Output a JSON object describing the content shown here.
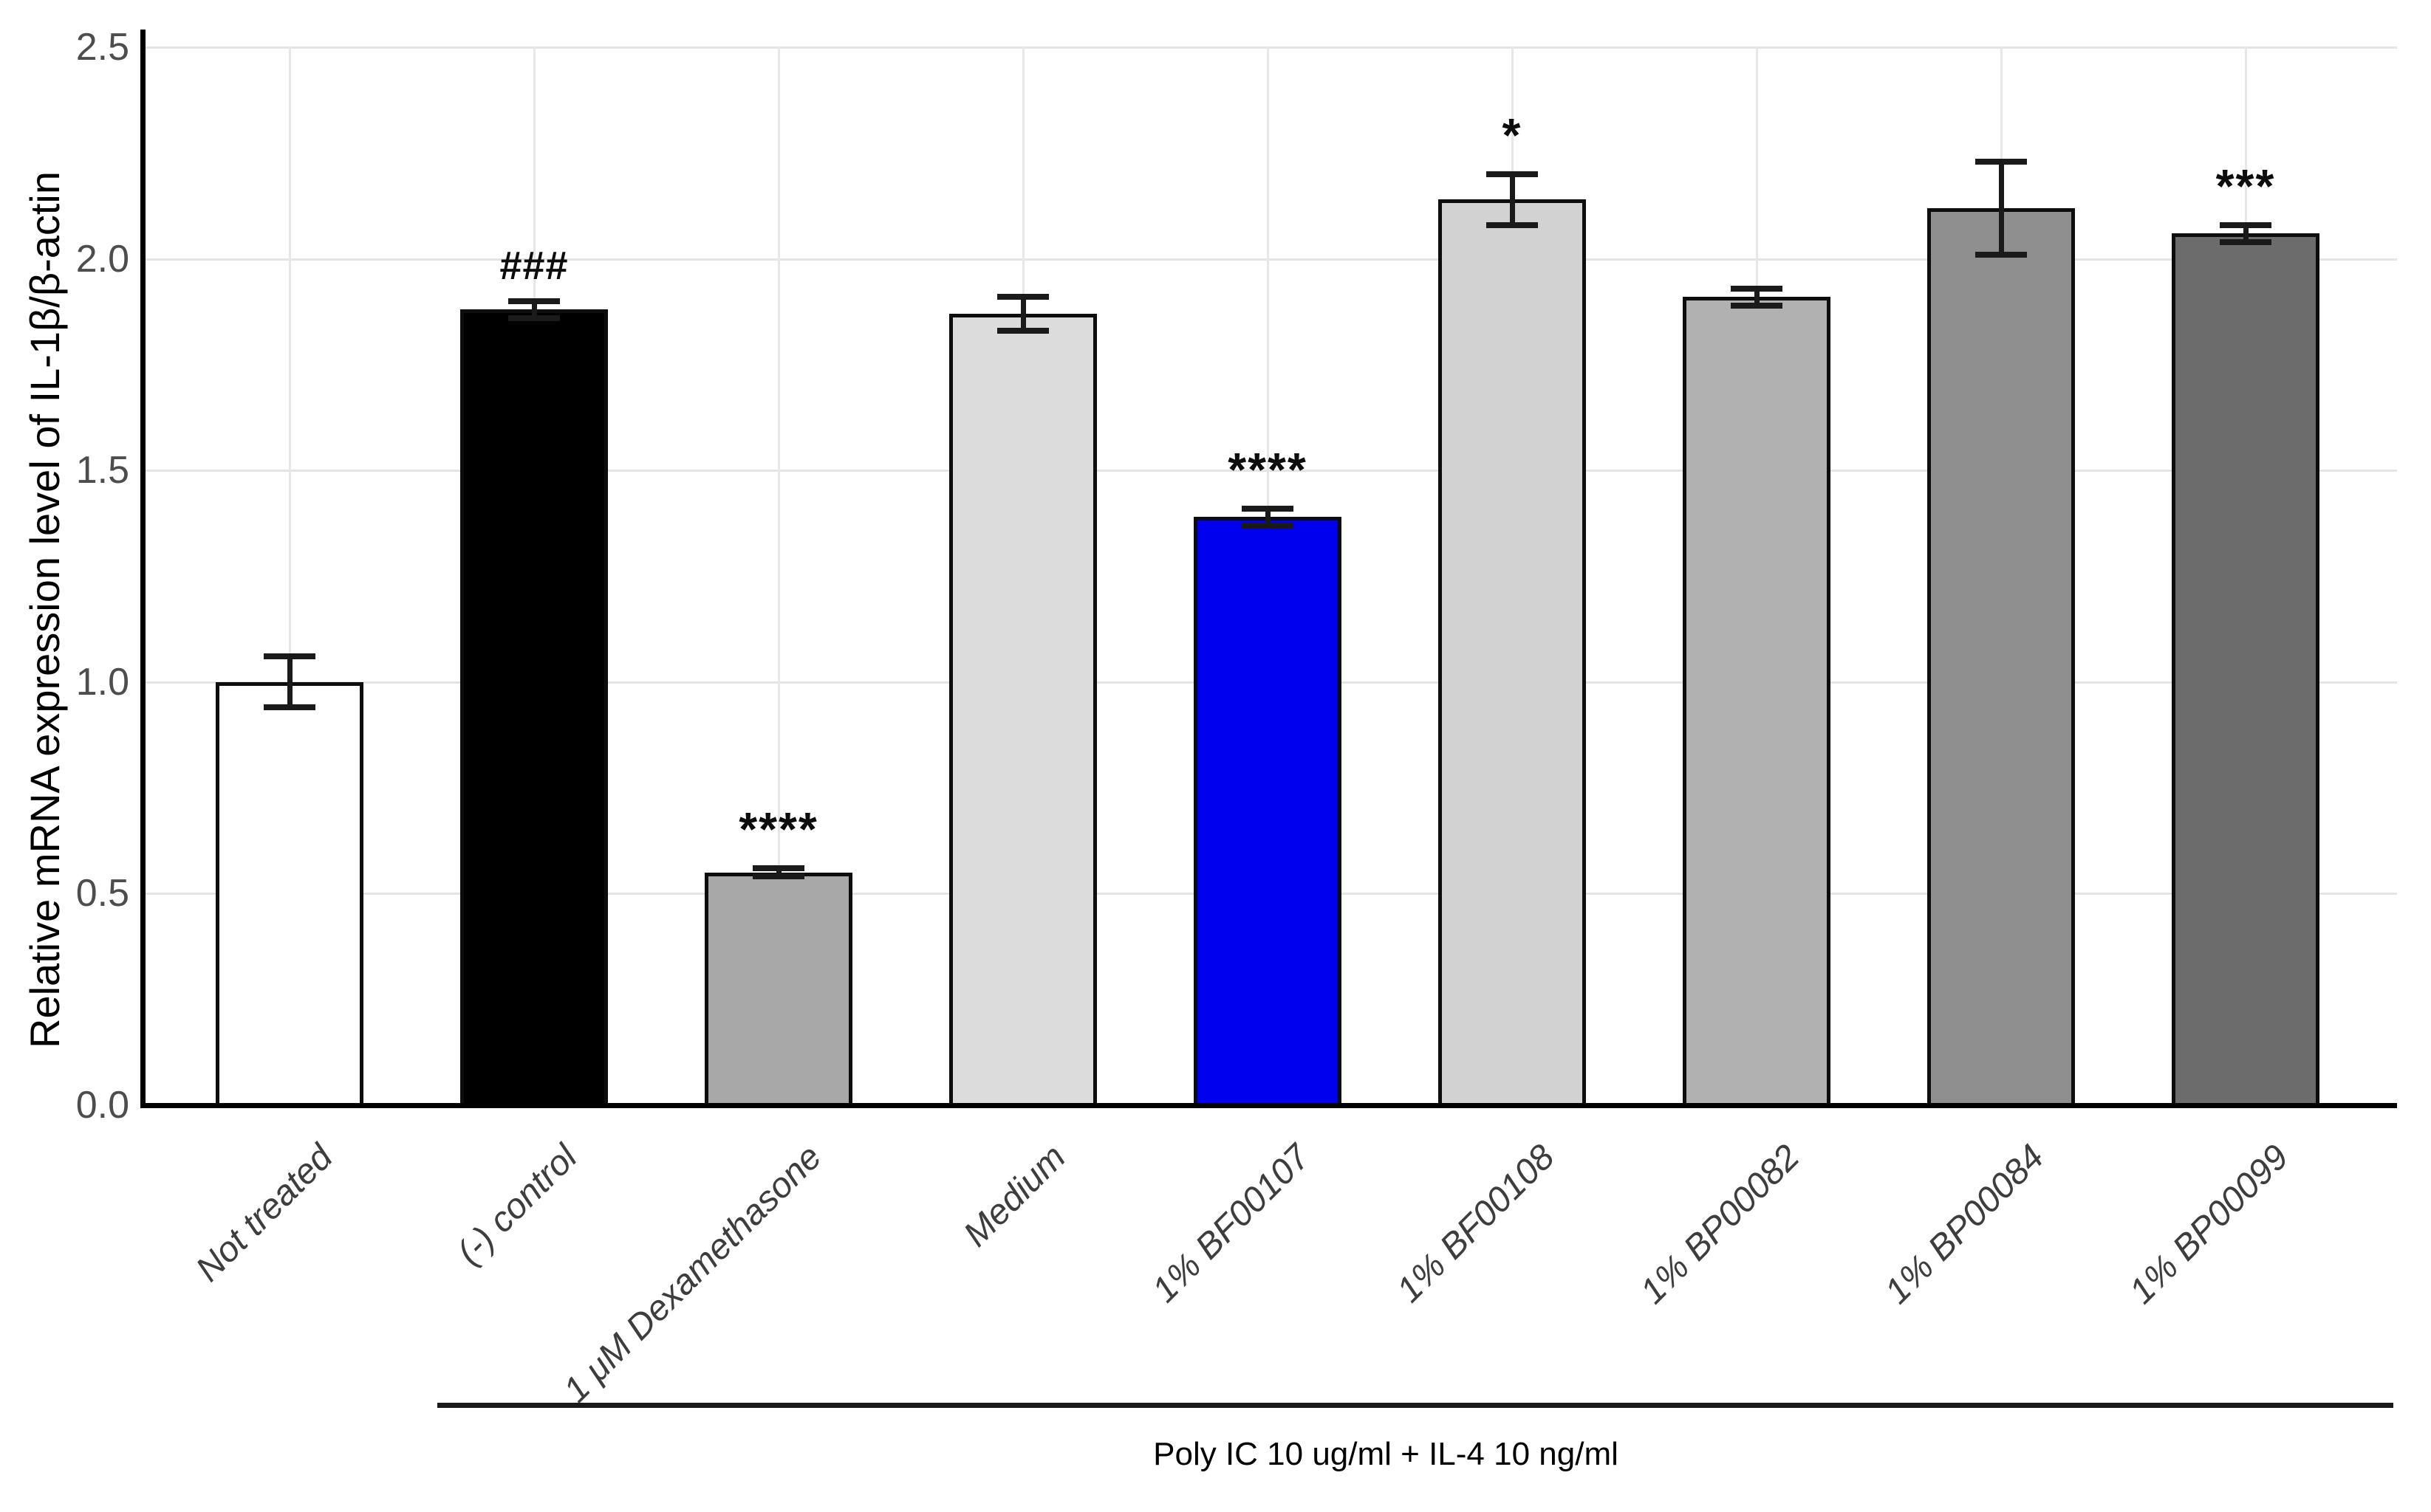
{
  "chart_data": {
    "type": "bar",
    "title": "",
    "xlabel": "",
    "ylabel": "Relative mRNA expression level of IL-1β/β-actin",
    "ylim": [
      0,
      2.5
    ],
    "yticks": [
      0.0,
      0.5,
      1.0,
      1.5,
      2.0,
      2.5
    ],
    "ytick_labels": [
      "0.0",
      "0.5",
      "1.0",
      "1.5",
      "2.0",
      "2.5"
    ],
    "grid": true,
    "legend": "none",
    "categories": [
      "Not treated",
      "(-) control",
      "1 μM Dexamethasone",
      "Medium",
      "1% BF00107",
      "1% BF00108",
      "1% BP00082",
      "1% BP00084",
      "1% BP00099"
    ],
    "series": [
      {
        "name": "Relative mRNA expression level of IL-1β/β-actin",
        "values": [
          1.0,
          1.88,
          0.55,
          1.87,
          1.39,
          2.14,
          1.91,
          2.12,
          2.06
        ],
        "errors": [
          0.06,
          0.02,
          0.01,
          0.04,
          0.02,
          0.06,
          0.02,
          0.11,
          0.02
        ]
      }
    ],
    "bar_colors": [
      "#ffffff",
      "#000000",
      "#a8a8a8",
      "#dcdcdc",
      "#0000ee",
      "#d2d2d2",
      "#b1b1b1",
      "#8f8f8f",
      "#6c6c6c"
    ],
    "bar_edge_color": "#0d0d0d",
    "significance": [
      "",
      "###",
      "****",
      "",
      "****",
      "*",
      "",
      "",
      "***"
    ],
    "group_annotation": {
      "label": "Poly IC 10 ug/ml + IL-4 10 ng/ml",
      "from_category": "(-) control",
      "to_category": "1% BP00099"
    }
  }
}
